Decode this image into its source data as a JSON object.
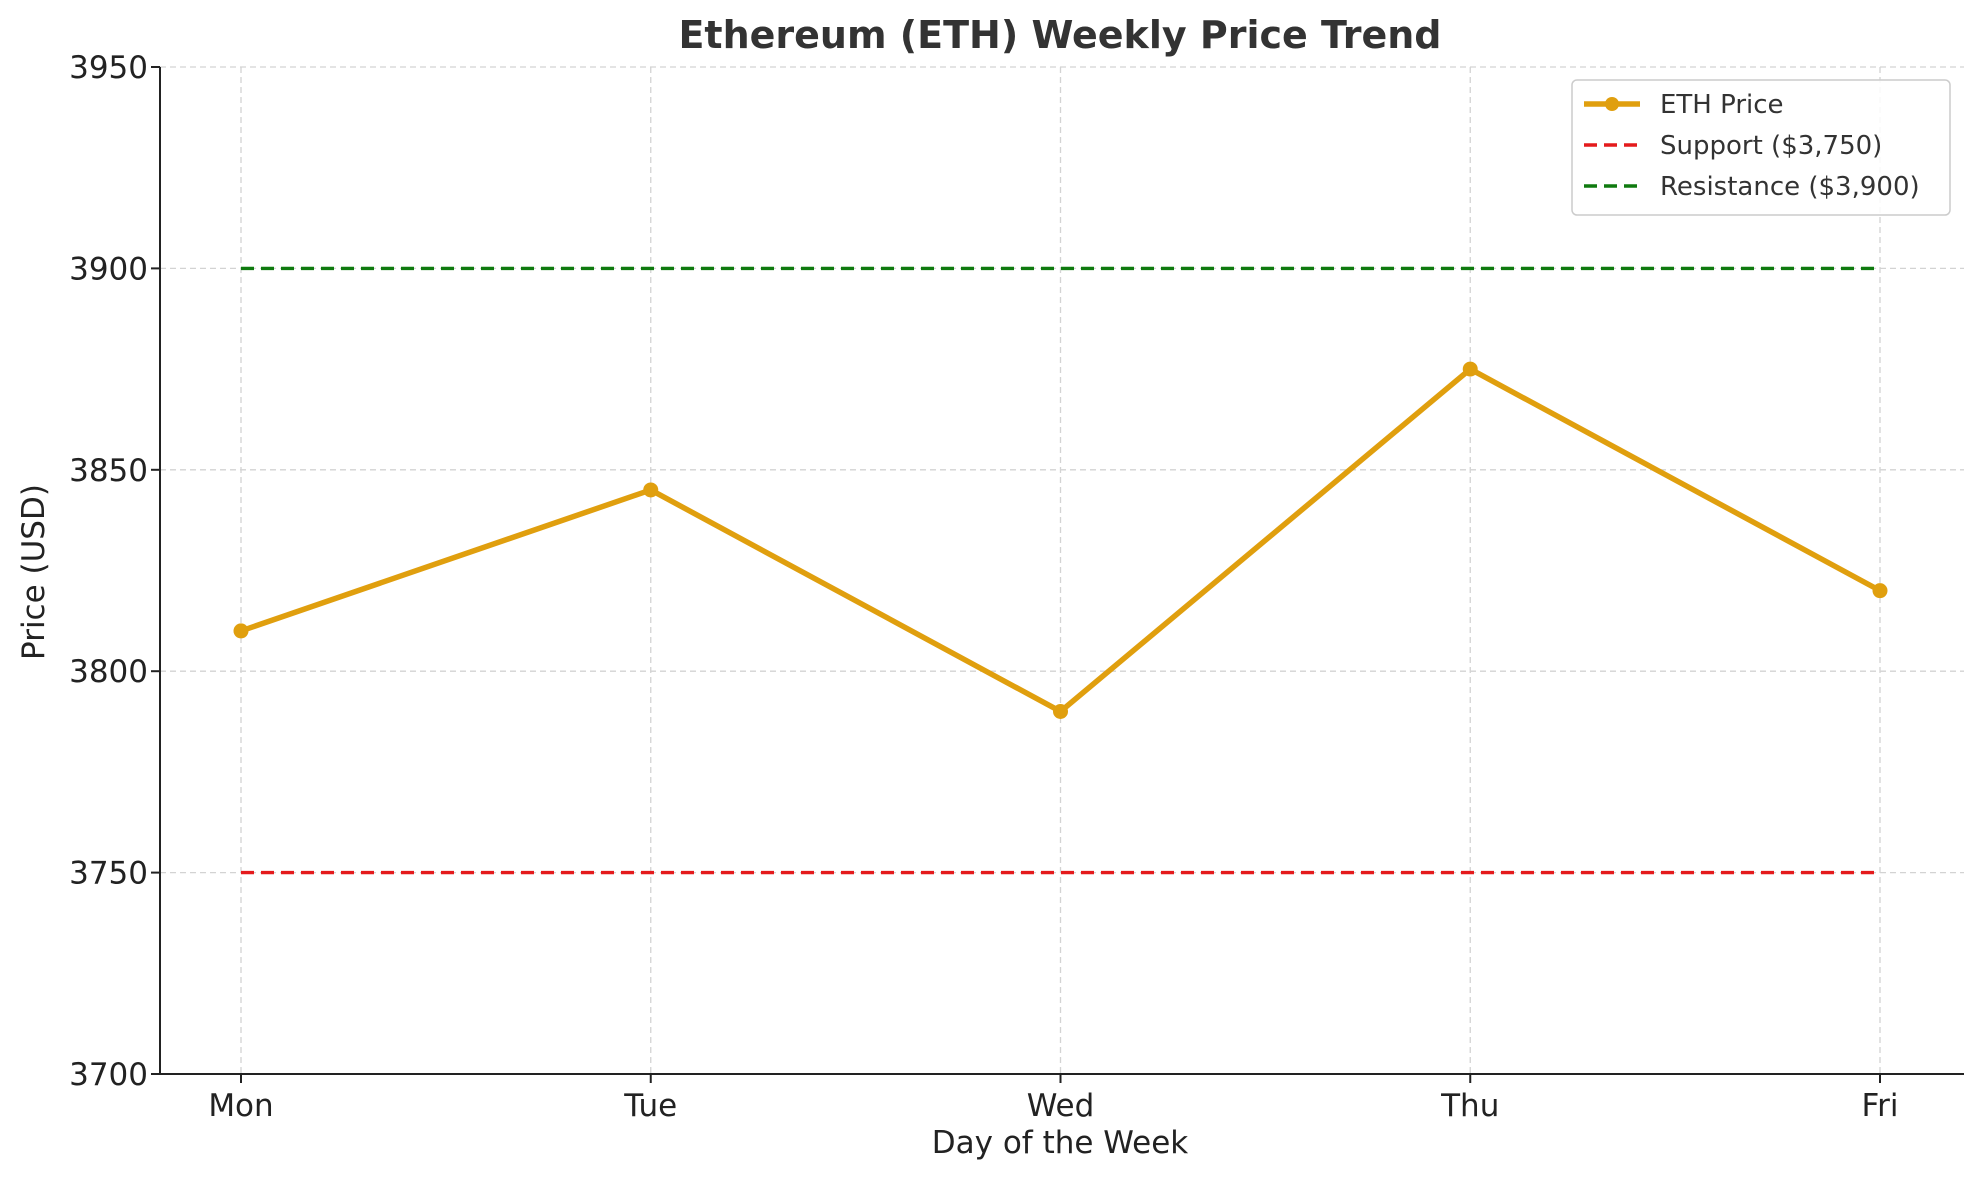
{
  "chart_data": {
    "type": "line",
    "title": "Ethereum (ETH) Weekly Price Trend",
    "xlabel": "Day of the Week",
    "ylabel": "Price (USD)",
    "categories": [
      "Mon",
      "Tue",
      "Wed",
      "Thu",
      "Fri"
    ],
    "ylim": [
      3700,
      3950
    ],
    "yticks": [
      3700,
      3750,
      3800,
      3850,
      3900,
      3950
    ],
    "ytick_labels": [
      "3700",
      "3750",
      "3800",
      "3850",
      "3900",
      "3950"
    ],
    "grid": true,
    "legend_position": "top-right",
    "series": [
      {
        "name": "ETH Price",
        "values": [
          3810,
          3845,
          3790,
          3875,
          3820
        ],
        "color": "#E09F0E",
        "style": "solid",
        "marker": "circle"
      }
    ],
    "reference_lines": [
      {
        "name": "Support ($3,750)",
        "value": 3750,
        "color": "#E41A1C",
        "style": "dashed"
      },
      {
        "name": "Resistance ($3,900)",
        "value": 3900,
        "color": "#0F7A0F",
        "style": "dashed"
      }
    ]
  }
}
